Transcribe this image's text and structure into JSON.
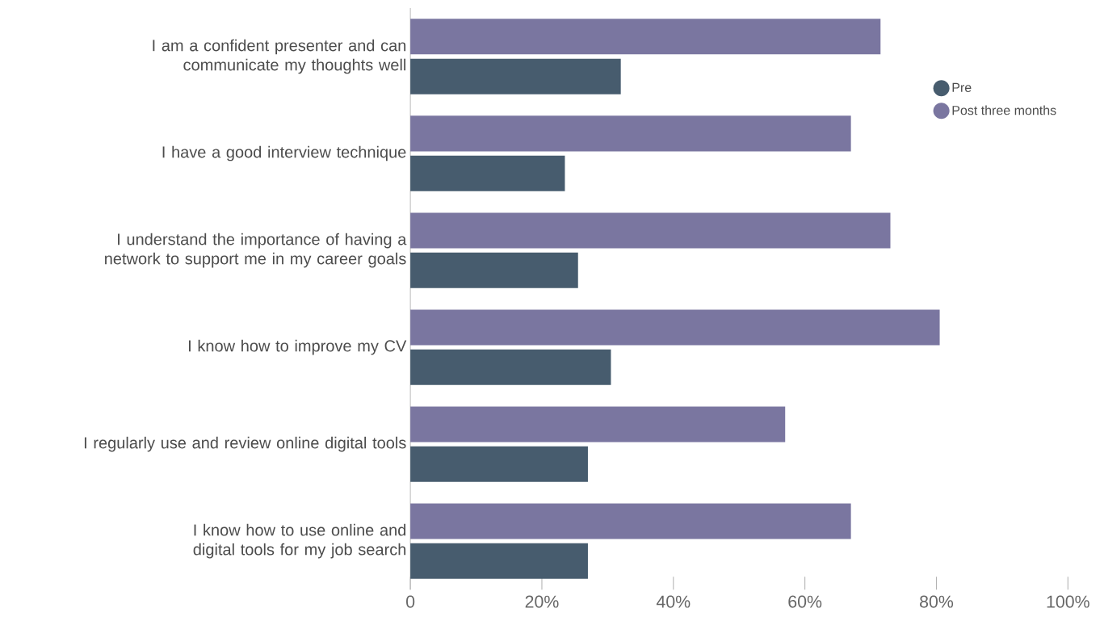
{
  "chart_data": {
    "type": "bar",
    "orientation": "horizontal",
    "categories": [
      "I am a confident presenter and can communicate my thoughts well",
      "I have a good interview technique",
      "I understand the importance of having a network to support me in my career goals",
      "I know how to improve my CV",
      "I regularly use and review online digital tools",
      "I know how to use online and digital tools for my job search"
    ],
    "series": [
      {
        "name": "Pre",
        "color": "#475c6e",
        "values": [
          32,
          23.5,
          25.5,
          30.5,
          27,
          27
        ]
      },
      {
        "name": "Post three months",
        "color": "#7a76a0",
        "values": [
          71.5,
          67,
          73,
          80.5,
          57,
          67
        ]
      }
    ],
    "xlim": [
      0,
      100
    ],
    "xticks": [
      0,
      {
        "value": 20,
        "label": "20%"
      },
      {
        "value": 40,
        "label": "40%"
      },
      {
        "value": 60,
        "label": "60%"
      },
      {
        "value": 80,
        "label": "80%"
      },
      {
        "value": 100,
        "label": "100%"
      }
    ],
    "legend": "top right",
    "grid": false
  }
}
